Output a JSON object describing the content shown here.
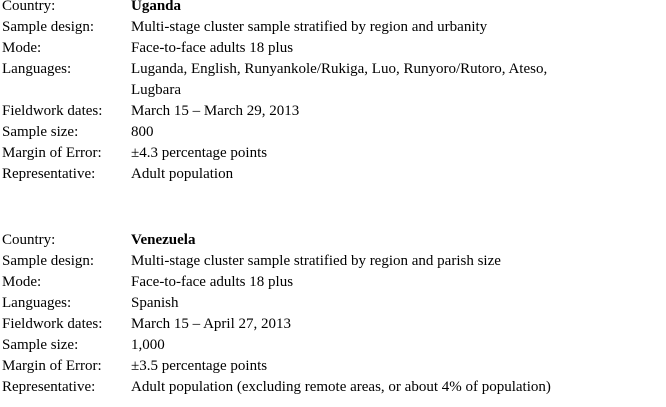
{
  "page": {
    "background_color": "#ffffff",
    "text_color": "#000000"
  },
  "blocks": [
    {
      "rows": [
        {
          "label": "Country:",
          "value": "Uganda"
        },
        {
          "label": "Sample design:",
          "value": "Multi-stage cluster sample stratified by region and urbanity"
        },
        {
          "label": "Mode:",
          "value": "Face-to-face adults 18 plus"
        },
        {
          "label": "Languages:",
          "value": "Luganda, English, Runyankole/Rukiga, Luo, Runyoro/Rutoro, Ateso,\nLugbara"
        },
        {
          "label": "Fieldwork dates:",
          "value": "March 15 – March 29, 2013"
        },
        {
          "label": "Sample size:",
          "value": "800"
        },
        {
          "label": "Margin of Error:",
          "value": "±4.3 percentage points"
        },
        {
          "label": "Representative:",
          "value": "Adult population"
        }
      ]
    },
    {
      "rows": [
        {
          "label": "Country:",
          "value": "Venezuela"
        },
        {
          "label": "Sample design:",
          "value": "Multi-stage cluster sample stratified by region and parish size"
        },
        {
          "label": "Mode:",
          "value": "Face-to-face adults 18 plus"
        },
        {
          "label": "Languages:",
          "value": "Spanish"
        },
        {
          "label": "Fieldwork dates:",
          "value": "March 15 – April 27, 2013"
        },
        {
          "label": "Sample size:",
          "value": "1,000"
        },
        {
          "label": "Margin of Error:",
          "value": "±3.5 percentage points"
        },
        {
          "label": "Representative:",
          "value": "Adult population (excluding remote areas, or about 4% of population)"
        }
      ]
    }
  ]
}
